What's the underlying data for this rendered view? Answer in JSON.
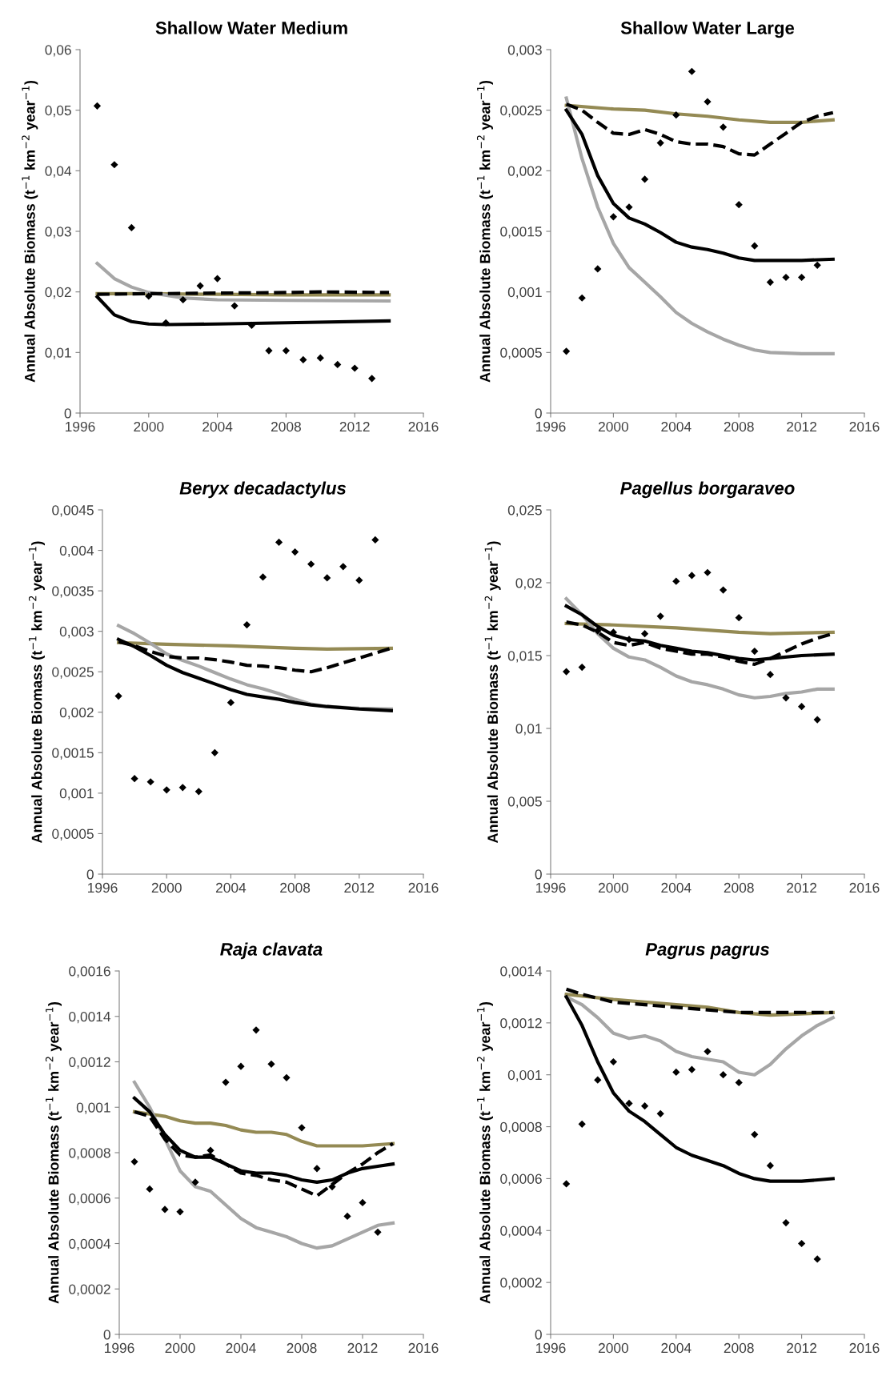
{
  "chart_data": [
    {
      "type": "line",
      "title": "Shallow Water Medium",
      "ylabel": "Annual Absolute Biomass (t$^{−1}$ km$^{−2}$ year$^{−1}$)",
      "xlim": [
        1996,
        2016
      ],
      "xticks": [
        1996,
        2000,
        2004,
        2008,
        2012,
        2016
      ],
      "ylim": [
        0,
        0.06
      ],
      "yticks": [
        0,
        {
          "value": 0.01,
          "label": "0,01"
        },
        {
          "value": 0.02,
          "label": "0,02"
        },
        {
          "value": 0.03,
          "label": "0,03"
        },
        {
          "value": 0.04,
          "label": "0,04"
        },
        {
          "value": 0.05,
          "label": "0,05"
        },
        {
          "value": 0.06,
          "label": "0,06"
        }
      ],
      "series": [
        {
          "type": "line",
          "color": "#948a54",
          "x": [
            1997,
            2000,
            2004,
            2008,
            2012,
            2014
          ],
          "values": [
            0.0197,
            0.0197,
            0.0196,
            0.0195,
            0.0195,
            0.0195
          ]
        },
        {
          "type": "line",
          "color": "#a6a6a6",
          "x": [
            1997,
            1998,
            1999,
            2000,
            2002,
            2004,
            2008,
            2014
          ],
          "values": [
            0.0247,
            0.0222,
            0.0208,
            0.0199,
            0.019,
            0.0187,
            0.0186,
            0.0185
          ]
        },
        {
          "type": "line",
          "color": "#000000",
          "x": [
            1997,
            1998,
            1999,
            2000,
            2001,
            2004,
            2008,
            2014
          ],
          "values": [
            0.0192,
            0.0162,
            0.0151,
            0.0147,
            0.0146,
            0.0147,
            0.0149,
            0.0152
          ]
        },
        {
          "type": "line",
          "color": "#000000",
          "line_style": "dashed",
          "x": [
            1997,
            2000,
            2004,
            2008,
            2010,
            2014
          ],
          "values": [
            0.0196,
            0.0197,
            0.0198,
            0.0199,
            0.02,
            0.0199
          ]
        },
        {
          "type": "scatter",
          "color": "#000000",
          "marker": "diamond",
          "x": [
            1997,
            1998,
            1999,
            2000,
            2001,
            2002,
            2003,
            2004,
            2005,
            2006,
            2007,
            2008,
            2009,
            2010,
            2011,
            2012,
            2013
          ],
          "values": [
            0.0507,
            0.041,
            0.0306,
            0.0193,
            0.0149,
            0.0187,
            0.021,
            0.0222,
            0.0177,
            0.0145,
            0.0103,
            0.0103,
            0.0088,
            0.0091,
            0.008,
            0.0074,
            0.0057
          ]
        }
      ]
    },
    {
      "type": "line",
      "title": "Shallow Water Large",
      "ylabel": "Annual Absolute Biomass (t$^{−1}$ km$^{−2}$ year$^{−1}$)",
      "xlim": [
        1996,
        2016
      ],
      "xticks": [
        1996,
        2000,
        2004,
        2008,
        2012,
        2016
      ],
      "ylim": [
        0,
        0.003
      ],
      "yticks": [
        0,
        {
          "value": 0.0005,
          "label": "0,0005"
        },
        {
          "value": 0.001,
          "label": "0,001"
        },
        {
          "value": 0.0015,
          "label": "0,0015"
        },
        {
          "value": 0.002,
          "label": "0,002"
        },
        {
          "value": 0.0025,
          "label": "0,0025"
        },
        {
          "value": 0.003,
          "label": "0,003"
        }
      ],
      "series": [
        {
          "type": "line",
          "color": "#948a54",
          "x": [
            1997,
            2000,
            2002,
            2004,
            2006,
            2008,
            2010,
            2012,
            2014
          ],
          "values": [
            0.00254,
            0.00251,
            0.0025,
            0.00247,
            0.00245,
            0.00242,
            0.0024,
            0.0024,
            0.00242
          ]
        },
        {
          "type": "line",
          "color": "#a6a6a6",
          "x": [
            1997,
            1998,
            1999,
            2000,
            2001,
            2002,
            2003,
            2004,
            2005,
            2006,
            2007,
            2008,
            2009,
            2010,
            2012,
            2014
          ],
          "values": [
            0.0026,
            0.0021,
            0.0017,
            0.0014,
            0.0012,
            0.00108,
            0.00096,
            0.00083,
            0.00074,
            0.00067,
            0.00061,
            0.00056,
            0.00052,
            0.0005,
            0.00049,
            0.00049
          ]
        },
        {
          "type": "line",
          "color": "#000000",
          "x": [
            1997,
            1998,
            1999,
            2000,
            2001,
            2002,
            2003,
            2004,
            2005,
            2006,
            2007,
            2008,
            2009,
            2010,
            2012,
            2014
          ],
          "values": [
            0.0025,
            0.0023,
            0.00196,
            0.00173,
            0.00161,
            0.00156,
            0.00149,
            0.00141,
            0.00137,
            0.00135,
            0.00132,
            0.00128,
            0.00126,
            0.00126,
            0.00126,
            0.00127
          ]
        },
        {
          "type": "line",
          "color": "#000000",
          "line_style": "dashed",
          "x": [
            1997,
            1998,
            1999,
            2000,
            2001,
            2002,
            2003,
            2004,
            2005,
            2006,
            2007,
            2008,
            2009,
            2010,
            2011,
            2012,
            2013,
            2014
          ],
          "values": [
            0.00255,
            0.0025,
            0.0024,
            0.00231,
            0.0023,
            0.00234,
            0.0023,
            0.00224,
            0.00222,
            0.00222,
            0.0022,
            0.00214,
            0.00213,
            0.00222,
            0.00231,
            0.0024,
            0.00245,
            0.00248
          ]
        },
        {
          "type": "scatter",
          "color": "#000000",
          "marker": "diamond",
          "x": [
            1997,
            1998,
            1999,
            2000,
            2001,
            2002,
            2003,
            2004,
            2005,
            2006,
            2007,
            2008,
            2009,
            2010,
            2011,
            2012,
            2013
          ],
          "values": [
            0.00051,
            0.00095,
            0.00119,
            0.00162,
            0.0017,
            0.00193,
            0.00223,
            0.00246,
            0.00282,
            0.00257,
            0.00236,
            0.00172,
            0.00138,
            0.00108,
            0.00112,
            0.00112,
            0.00122
          ]
        }
      ]
    },
    {
      "type": "line",
      "title": "Beryx decadactylus",
      "ylabel": "Annual Absolute Biomass (t$^{−1}$ km$^{−2}$ year$^{−1}$)",
      "xlim": [
        1996,
        2016
      ],
      "xticks": [
        1996,
        2000,
        2004,
        2008,
        2012,
        2016
      ],
      "ylim": [
        0,
        0.0045
      ],
      "yticks": [
        0,
        {
          "value": 0.0005,
          "label": "0,0005"
        },
        {
          "value": 0.001,
          "label": "0,001"
        },
        {
          "value": 0.0015,
          "label": "0,0015"
        },
        {
          "value": 0.002,
          "label": "0,002"
        },
        {
          "value": 0.0025,
          "label": "0,0025"
        },
        {
          "value": 0.003,
          "label": "0,003"
        },
        {
          "value": 0.0035,
          "label": "0,0035"
        },
        {
          "value": 0.004,
          "label": "0,004"
        },
        {
          "value": 0.0045,
          "label": "0,0045"
        }
      ],
      "series": [
        {
          "type": "line",
          "color": "#948a54",
          "x": [
            1997,
            2000,
            2004,
            2008,
            2010,
            2014
          ],
          "values": [
            0.00286,
            0.00284,
            0.00282,
            0.00279,
            0.00278,
            0.00279
          ]
        },
        {
          "type": "line",
          "color": "#a6a6a6",
          "x": [
            1997,
            1998,
            1999,
            2000,
            2001,
            2002,
            2003,
            2004,
            2005,
            2006,
            2007,
            2008,
            2009,
            2010,
            2012,
            2014
          ],
          "values": [
            0.00307,
            0.00297,
            0.00285,
            0.00272,
            0.00264,
            0.00257,
            0.00249,
            0.00241,
            0.00234,
            0.00229,
            0.00223,
            0.00216,
            0.0021,
            0.00207,
            0.00205,
            0.00204
          ]
        },
        {
          "type": "line",
          "color": "#000000",
          "x": [
            1997,
            1998,
            1999,
            2000,
            2001,
            2002,
            2003,
            2004,
            2005,
            2006,
            2007,
            2008,
            2009,
            2010,
            2012,
            2014
          ],
          "values": [
            0.0029,
            0.00281,
            0.0027,
            0.00258,
            0.00249,
            0.00242,
            0.00235,
            0.00228,
            0.00222,
            0.00219,
            0.00216,
            0.00212,
            0.00209,
            0.00207,
            0.00204,
            0.00202
          ]
        },
        {
          "type": "line",
          "color": "#000000",
          "line_style": "dashed",
          "x": [
            1997,
            1998,
            1999,
            2000,
            2001,
            2002,
            2003,
            2004,
            2005,
            2006,
            2007,
            2008,
            2009,
            2010,
            2011,
            2012,
            2013,
            2014
          ],
          "values": [
            0.00287,
            0.00282,
            0.00275,
            0.00269,
            0.00267,
            0.00267,
            0.00265,
            0.00262,
            0.00258,
            0.00257,
            0.00255,
            0.00252,
            0.0025,
            0.00255,
            0.00261,
            0.00267,
            0.00273,
            0.00279
          ]
        },
        {
          "type": "scatter",
          "color": "#000000",
          "marker": "diamond",
          "x": [
            1997,
            1998,
            1999,
            2000,
            2001,
            2002,
            2003,
            2004,
            2005,
            2006,
            2007,
            2008,
            2009,
            2010,
            2011,
            2012,
            2013
          ],
          "values": [
            0.0022,
            0.00118,
            0.00114,
            0.00104,
            0.00107,
            0.00102,
            0.0015,
            0.00212,
            0.00308,
            0.00367,
            0.0041,
            0.00398,
            0.00383,
            0.00366,
            0.0038,
            0.00363,
            0.00413
          ]
        }
      ]
    },
    {
      "type": "line",
      "title": "Pagellus borgaraveo",
      "ylabel": "Annual Absolute Biomass (t$^{−1}$ km$^{−2}$ year$^{−1}$)",
      "xlim": [
        1996,
        2016
      ],
      "xticks": [
        1996,
        2000,
        2004,
        2008,
        2012,
        2016
      ],
      "ylim": [
        0,
        0.025
      ],
      "yticks": [
        0,
        {
          "value": 0.005,
          "label": "0,005"
        },
        {
          "value": 0.01,
          "label": "0,01"
        },
        {
          "value": 0.015,
          "label": "0,015"
        },
        {
          "value": 0.02,
          "label": "0,02"
        },
        {
          "value": 0.025,
          "label": "0,025"
        }
      ],
      "series": [
        {
          "type": "line",
          "color": "#948a54",
          "x": [
            1997,
            2000,
            2004,
            2008,
            2010,
            2014
          ],
          "values": [
            0.0172,
            0.0171,
            0.0169,
            0.0166,
            0.0165,
            0.0166
          ]
        },
        {
          "type": "line",
          "color": "#a6a6a6",
          "x": [
            1997,
            1998,
            1999,
            2000,
            2001,
            2002,
            2003,
            2004,
            2005,
            2006,
            2007,
            2008,
            2009,
            2010,
            2011,
            2012,
            2013,
            2014
          ],
          "values": [
            0.0189,
            0.0178,
            0.0165,
            0.0155,
            0.0149,
            0.0147,
            0.0142,
            0.0136,
            0.0132,
            0.013,
            0.0127,
            0.0123,
            0.0121,
            0.0122,
            0.0124,
            0.0125,
            0.0127,
            0.0127
          ]
        },
        {
          "type": "line",
          "color": "#000000",
          "x": [
            1997,
            1998,
            1999,
            2000,
            2001,
            2002,
            2003,
            2004,
            2005,
            2006,
            2007,
            2008,
            2009,
            2010,
            2012,
            2014
          ],
          "values": [
            0.0184,
            0.0178,
            0.017,
            0.0164,
            0.0161,
            0.016,
            0.0157,
            0.0155,
            0.0153,
            0.0152,
            0.015,
            0.0148,
            0.0147,
            0.0148,
            0.015,
            0.0151
          ]
        },
        {
          "type": "line",
          "color": "#000000",
          "line_style": "dashed",
          "x": [
            1997,
            1998,
            1999,
            2000,
            2001,
            2002,
            2003,
            2004,
            2005,
            2006,
            2007,
            2008,
            2009,
            2010,
            2011,
            2012,
            2013,
            2014
          ],
          "values": [
            0.0173,
            0.0171,
            0.0166,
            0.0159,
            0.0157,
            0.0159,
            0.0155,
            0.0153,
            0.0151,
            0.0151,
            0.0149,
            0.0146,
            0.0144,
            0.0148,
            0.0153,
            0.0158,
            0.0162,
            0.0165
          ]
        },
        {
          "type": "scatter",
          "color": "#000000",
          "marker": "diamond",
          "x": [
            1997,
            1998,
            1999,
            2000,
            2001,
            2002,
            2003,
            2004,
            2005,
            2006,
            2007,
            2008,
            2009,
            2010,
            2011,
            2012,
            2013
          ],
          "values": [
            0.0139,
            0.0142,
            0.0167,
            0.0166,
            0.0161,
            0.0165,
            0.0177,
            0.0201,
            0.0205,
            0.0207,
            0.0195,
            0.0176,
            0.0153,
            0.0137,
            0.0121,
            0.0115,
            0.0106
          ]
        }
      ]
    },
    {
      "type": "line",
      "title": "Raja clavata",
      "ylabel": "Annual Absolute Biomass (t$^{−1}$ km$^{−2}$ year$^{−1}$)",
      "xlim": [
        1996,
        2016
      ],
      "xticks": [
        1996,
        2000,
        2004,
        2008,
        2012,
        2016
      ],
      "ylim": [
        0,
        0.0016
      ],
      "yticks": [
        0,
        {
          "value": 0.0002,
          "label": "0,0002"
        },
        {
          "value": 0.0004,
          "label": "0,0004"
        },
        {
          "value": 0.0006,
          "label": "0,0006"
        },
        {
          "value": 0.0008,
          "label": "0,0008"
        },
        {
          "value": 0.001,
          "label": "0,001"
        },
        {
          "value": 0.0012,
          "label": "0,0012"
        },
        {
          "value": 0.0014,
          "label": "0,0014"
        },
        {
          "value": 0.0016,
          "label": "0,0016"
        }
      ],
      "series": [
        {
          "type": "line",
          "color": "#948a54",
          "x": [
            1997,
            1998,
            1999,
            2000,
            2001,
            2002,
            2003,
            2004,
            2005,
            2006,
            2007,
            2008,
            2009,
            2010,
            2012,
            2014
          ],
          "values": [
            0.00098,
            0.00097,
            0.00096,
            0.00094,
            0.00093,
            0.00093,
            0.00092,
            0.0009,
            0.00089,
            0.00089,
            0.00088,
            0.00085,
            0.00083,
            0.00083,
            0.00083,
            0.00084
          ]
        },
        {
          "type": "line",
          "color": "#a6a6a6",
          "x": [
            1997,
            1998,
            1999,
            2000,
            2001,
            2002,
            2003,
            2004,
            2005,
            2006,
            2007,
            2008,
            2009,
            2010,
            2011,
            2012,
            2013,
            2014
          ],
          "values": [
            0.00111,
            0.001,
            0.00086,
            0.00072,
            0.00065,
            0.00063,
            0.00057,
            0.00051,
            0.00047,
            0.00045,
            0.00043,
            0.0004,
            0.00038,
            0.00039,
            0.00042,
            0.00045,
            0.00048,
            0.00049
          ]
        },
        {
          "type": "line",
          "color": "#000000",
          "x": [
            1997,
            1998,
            1999,
            2000,
            2001,
            2002,
            2003,
            2004,
            2005,
            2006,
            2007,
            2008,
            2009,
            2010,
            2011,
            2012,
            2013,
            2014
          ],
          "values": [
            0.00104,
            0.00098,
            0.00088,
            0.00081,
            0.00078,
            0.00078,
            0.00075,
            0.00072,
            0.00071,
            0.00071,
            0.0007,
            0.00068,
            0.00067,
            0.00068,
            0.00071,
            0.00073,
            0.00074,
            0.00075
          ]
        },
        {
          "type": "line",
          "color": "#000000",
          "line_style": "dashed",
          "x": [
            1997,
            1998,
            1999,
            2000,
            2001,
            2002,
            2003,
            2004,
            2005,
            2006,
            2007,
            2008,
            2009,
            2010,
            2011,
            2012,
            2013,
            2014
          ],
          "values": [
            0.00098,
            0.00096,
            0.00086,
            0.00079,
            0.00078,
            0.00079,
            0.00075,
            0.00071,
            0.0007,
            0.00068,
            0.00067,
            0.00064,
            0.00061,
            0.00066,
            0.00071,
            0.00075,
            0.0008,
            0.00084
          ]
        },
        {
          "type": "scatter",
          "color": "#000000",
          "marker": "diamond",
          "x": [
            1997,
            1998,
            1999,
            2000,
            2001,
            2002,
            2003,
            2004,
            2005,
            2006,
            2007,
            2008,
            2009,
            2010,
            2011,
            2012,
            2013
          ],
          "values": [
            0.00076,
            0.00064,
            0.00055,
            0.00054,
            0.00067,
            0.00081,
            0.00111,
            0.00118,
            0.00134,
            0.00119,
            0.00113,
            0.00091,
            0.00073,
            0.00065,
            0.00052,
            0.00058,
            0.00045
          ]
        }
      ]
    },
    {
      "type": "line",
      "title": "Pagrus pagrus",
      "ylabel": "Annual Absolute Biomass (t$^{−1}$ km$^{−2}$ year$^{−1}$)",
      "xlim": [
        1996,
        2016
      ],
      "xticks": [
        1996,
        2000,
        2004,
        2008,
        2012,
        2016
      ],
      "ylim": [
        0,
        0.0014
      ],
      "yticks": [
        0,
        {
          "value": 0.0002,
          "label": "0,0002"
        },
        {
          "value": 0.0004,
          "label": "0,0004"
        },
        {
          "value": 0.0006,
          "label": "0,0006"
        },
        {
          "value": 0.0008,
          "label": "0,0008"
        },
        {
          "value": 0.001,
          "label": "0,001"
        },
        {
          "value": 0.0012,
          "label": "0,0012"
        },
        {
          "value": 0.0014,
          "label": "0,0014"
        }
      ],
      "series": [
        {
          "type": "line",
          "color": "#948a54",
          "x": [
            1997,
            2000,
            2002,
            2004,
            2006,
            2008,
            2010,
            2014
          ],
          "values": [
            0.00131,
            0.00129,
            0.00128,
            0.00127,
            0.00126,
            0.00124,
            0.00123,
            0.00124
          ]
        },
        {
          "type": "line",
          "color": "#a6a6a6",
          "x": [
            1997,
            1998,
            1999,
            2000,
            2001,
            2002,
            2003,
            2004,
            2005,
            2006,
            2007,
            2008,
            2009,
            2010,
            2011,
            2012,
            2013,
            2014
          ],
          "values": [
            0.0013,
            0.00127,
            0.00122,
            0.00116,
            0.00114,
            0.00115,
            0.00113,
            0.00109,
            0.00107,
            0.00106,
            0.00105,
            0.00101,
            0.001,
            0.00104,
            0.0011,
            0.00115,
            0.00119,
            0.00122
          ]
        },
        {
          "type": "line",
          "color": "#000000",
          "x": [
            1997,
            1998,
            1999,
            2000,
            2001,
            2002,
            2003,
            2004,
            2005,
            2006,
            2007,
            2008,
            2009,
            2010,
            2012,
            2014
          ],
          "values": [
            0.0013,
            0.00119,
            0.00105,
            0.00093,
            0.00086,
            0.00082,
            0.00077,
            0.00072,
            0.00069,
            0.00067,
            0.00065,
            0.00062,
            0.0006,
            0.00059,
            0.00059,
            0.0006
          ]
        },
        {
          "type": "line",
          "color": "#000000",
          "line_style": "dashed",
          "x": [
            1997,
            1998,
            2000,
            2002,
            2004,
            2006,
            2008,
            2010,
            2014
          ],
          "values": [
            0.00133,
            0.00131,
            0.00128,
            0.00127,
            0.00126,
            0.00125,
            0.00124,
            0.00124,
            0.00124
          ]
        },
        {
          "type": "scatter",
          "color": "#000000",
          "marker": "diamond",
          "x": [
            1997,
            1998,
            1999,
            2000,
            2001,
            2002,
            2003,
            2004,
            2005,
            2006,
            2007,
            2008,
            2009,
            2010,
            2011,
            2012,
            2013
          ],
          "values": [
            0.00058,
            0.00081,
            0.00098,
            0.00105,
            0.00089,
            0.00088,
            0.00085,
            0.00101,
            0.00102,
            0.00109,
            0.001,
            0.00097,
            0.00077,
            0.00065,
            0.00043,
            0.00035,
            0.00029
          ]
        }
      ]
    }
  ]
}
